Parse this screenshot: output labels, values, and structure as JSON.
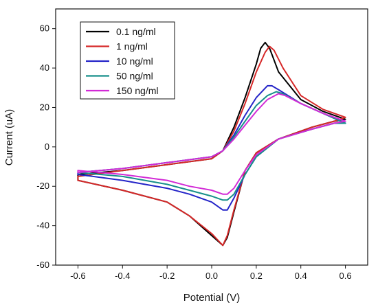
{
  "chart_data": {
    "type": "line",
    "title": "",
    "xlabel": "Potential (V)",
    "ylabel": "Current (uA)",
    "xlim": [
      -0.7,
      0.7
    ],
    "ylim": [
      -60,
      70
    ],
    "xticks": [
      -0.6,
      -0.4,
      -0.2,
      0.0,
      0.2,
      0.4,
      0.6
    ],
    "yticks": [
      -60,
      -40,
      -20,
      0,
      20,
      40,
      60
    ],
    "xtick_labels": [
      "-0.6",
      "-0.4",
      "-0.2",
      "0.0",
      "0.2",
      "0.4",
      "0.6"
    ],
    "ytick_labels": [
      "-60",
      "-40",
      "-20",
      "0",
      "20",
      "40",
      "60"
    ],
    "grid": false,
    "legend_position": "top-left",
    "series": [
      {
        "name": "0.1 ng/ml",
        "color": "#000000",
        "x": [
          -0.6,
          -0.4,
          -0.2,
          0.0,
          0.05,
          0.1,
          0.15,
          0.2,
          0.22,
          0.24,
          0.26,
          0.3,
          0.4,
          0.5,
          0.6,
          0.55,
          0.45,
          0.3,
          0.2,
          0.15,
          0.1,
          0.07,
          0.05,
          0.0,
          -0.1,
          -0.2,
          -0.4,
          -0.6
        ],
        "y": [
          -14,
          -12,
          -9,
          -6,
          -2,
          10,
          25,
          42,
          50,
          53,
          50,
          38,
          24,
          18,
          14,
          13,
          10,
          4,
          -3,
          -12,
          -33,
          -46,
          -50,
          -45,
          -35,
          -28,
          -22,
          -17
        ]
      },
      {
        "name": "1 ng/ml",
        "color": "#d62828",
        "x": [
          -0.6,
          -0.4,
          -0.2,
          0.0,
          0.05,
          0.1,
          0.15,
          0.2,
          0.24,
          0.26,
          0.28,
          0.32,
          0.4,
          0.5,
          0.6,
          0.55,
          0.45,
          0.3,
          0.2,
          0.15,
          0.1,
          0.07,
          0.05,
          0.0,
          -0.1,
          -0.2,
          -0.4,
          -0.6
        ],
        "y": [
          -15,
          -12,
          -9,
          -6,
          -2,
          8,
          22,
          38,
          48,
          51,
          49,
          40,
          26,
          19,
          15,
          13,
          10,
          4,
          -3,
          -12,
          -32,
          -45,
          -50,
          -44,
          -35,
          -28,
          -22,
          -17
        ]
      },
      {
        "name": "10 ng/ml",
        "color": "#2424c8",
        "x": [
          -0.6,
          -0.4,
          -0.2,
          0.0,
          0.05,
          0.1,
          0.15,
          0.2,
          0.25,
          0.27,
          0.3,
          0.4,
          0.5,
          0.6,
          0.55,
          0.45,
          0.3,
          0.2,
          0.15,
          0.1,
          0.07,
          0.05,
          0.0,
          -0.1,
          -0.2,
          -0.4,
          -0.6
        ],
        "y": [
          -13,
          -11,
          -8,
          -5,
          -2,
          6,
          16,
          25,
          31,
          31,
          29,
          22,
          17,
          12,
          12,
          9,
          4,
          -5,
          -14,
          -26,
          -32,
          -32,
          -28,
          -24,
          -21,
          -17,
          -14
        ]
      },
      {
        "name": "50 ng/ml",
        "color": "#168f8a",
        "x": [
          -0.6,
          -0.4,
          -0.2,
          0.0,
          0.05,
          0.1,
          0.15,
          0.2,
          0.25,
          0.29,
          0.32,
          0.4,
          0.5,
          0.6,
          0.55,
          0.45,
          0.3,
          0.2,
          0.15,
          0.1,
          0.07,
          0.05,
          0.0,
          -0.1,
          -0.2,
          -0.4,
          -0.6
        ],
        "y": [
          -13,
          -11,
          -8,
          -5,
          -2,
          5,
          13,
          21,
          26,
          28,
          27,
          22,
          17,
          12,
          12,
          9,
          4,
          -5,
          -14,
          -24,
          -27,
          -27,
          -25,
          -22,
          -19,
          -15,
          -13
        ]
      },
      {
        "name": "150 ng/ml",
        "color": "#d22ad6",
        "x": [
          -0.6,
          -0.4,
          -0.2,
          0.0,
          0.05,
          0.1,
          0.15,
          0.2,
          0.25,
          0.3,
          0.33,
          0.4,
          0.5,
          0.6,
          0.55,
          0.45,
          0.3,
          0.2,
          0.15,
          0.1,
          0.07,
          0.05,
          0.0,
          -0.1,
          -0.2,
          -0.4,
          -0.6
        ],
        "y": [
          -13,
          -11,
          -8,
          -5,
          -2,
          4,
          11,
          18,
          24,
          27,
          26,
          22,
          17,
          13,
          12,
          9,
          4,
          -4,
          -12,
          -21,
          -24,
          -24,
          -22,
          -20,
          -17,
          -14,
          -12
        ]
      }
    ]
  }
}
